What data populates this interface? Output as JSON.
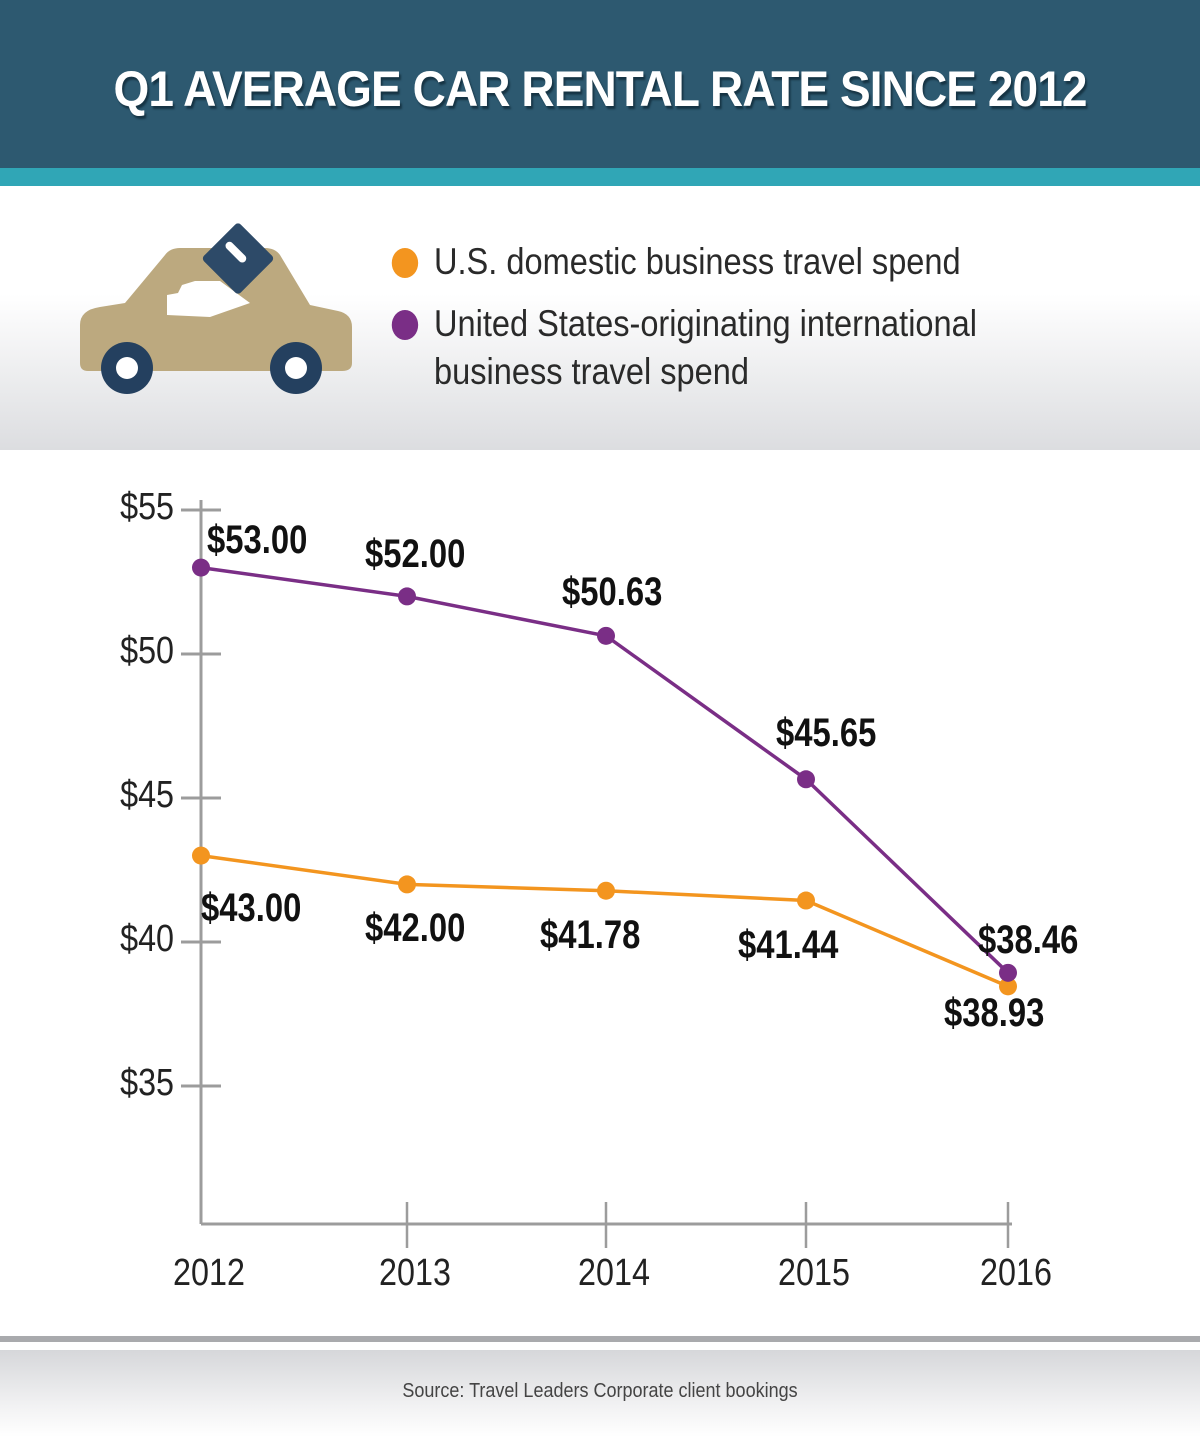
{
  "header": {
    "title": "Q1 AVERAGE CAR RENTAL RATE SINCE 2012"
  },
  "icons": {
    "illustration": "car-with-key-icon"
  },
  "legend": [
    {
      "label": "U.S. domestic business travel spend",
      "color": "#f3951f"
    },
    {
      "label": "United States-originating international business travel spend",
      "color": "#7a2e86"
    }
  ],
  "colors": {
    "header_bg": "#2d5970",
    "stripe": "#30a6b6",
    "domestic": "#f3951f",
    "international": "#7a2e86",
    "axis": "#9c9c9c",
    "car_body": "#bca97f",
    "car_wheels": "#24405f"
  },
  "footer": {
    "source": "Source: Travel Leaders Corporate client bookings"
  },
  "chart_data": {
    "type": "line",
    "title": "Q1 AVERAGE CAR RENTAL RATE SINCE 2012",
    "xlabel": "",
    "ylabel": "",
    "categories": [
      "2012",
      "2013",
      "2014",
      "2015",
      "2016"
    ],
    "y_ticks": [
      55,
      50,
      45,
      40,
      35
    ],
    "y_tick_labels": [
      "$55",
      "$50",
      "$45",
      "$40",
      "$35"
    ],
    "ylim": [
      30,
      55
    ],
    "grid": false,
    "legend_position": "top",
    "series": [
      {
        "name": "U.S. domestic business travel spend",
        "color": "#f3951f",
        "values": [
          43.0,
          42.0,
          41.78,
          41.44,
          38.46
        ],
        "labels": [
          "$43.00",
          "$42.00",
          "$41.78",
          "$41.44",
          "$38.46"
        ]
      },
      {
        "name": "United States-originating international business travel spend",
        "color": "#7a2e86",
        "values": [
          53.0,
          52.0,
          50.63,
          45.65,
          38.93
        ],
        "labels": [
          "$53.00",
          "$52.00",
          "$50.63",
          "$45.65",
          "$38.93"
        ]
      }
    ]
  }
}
